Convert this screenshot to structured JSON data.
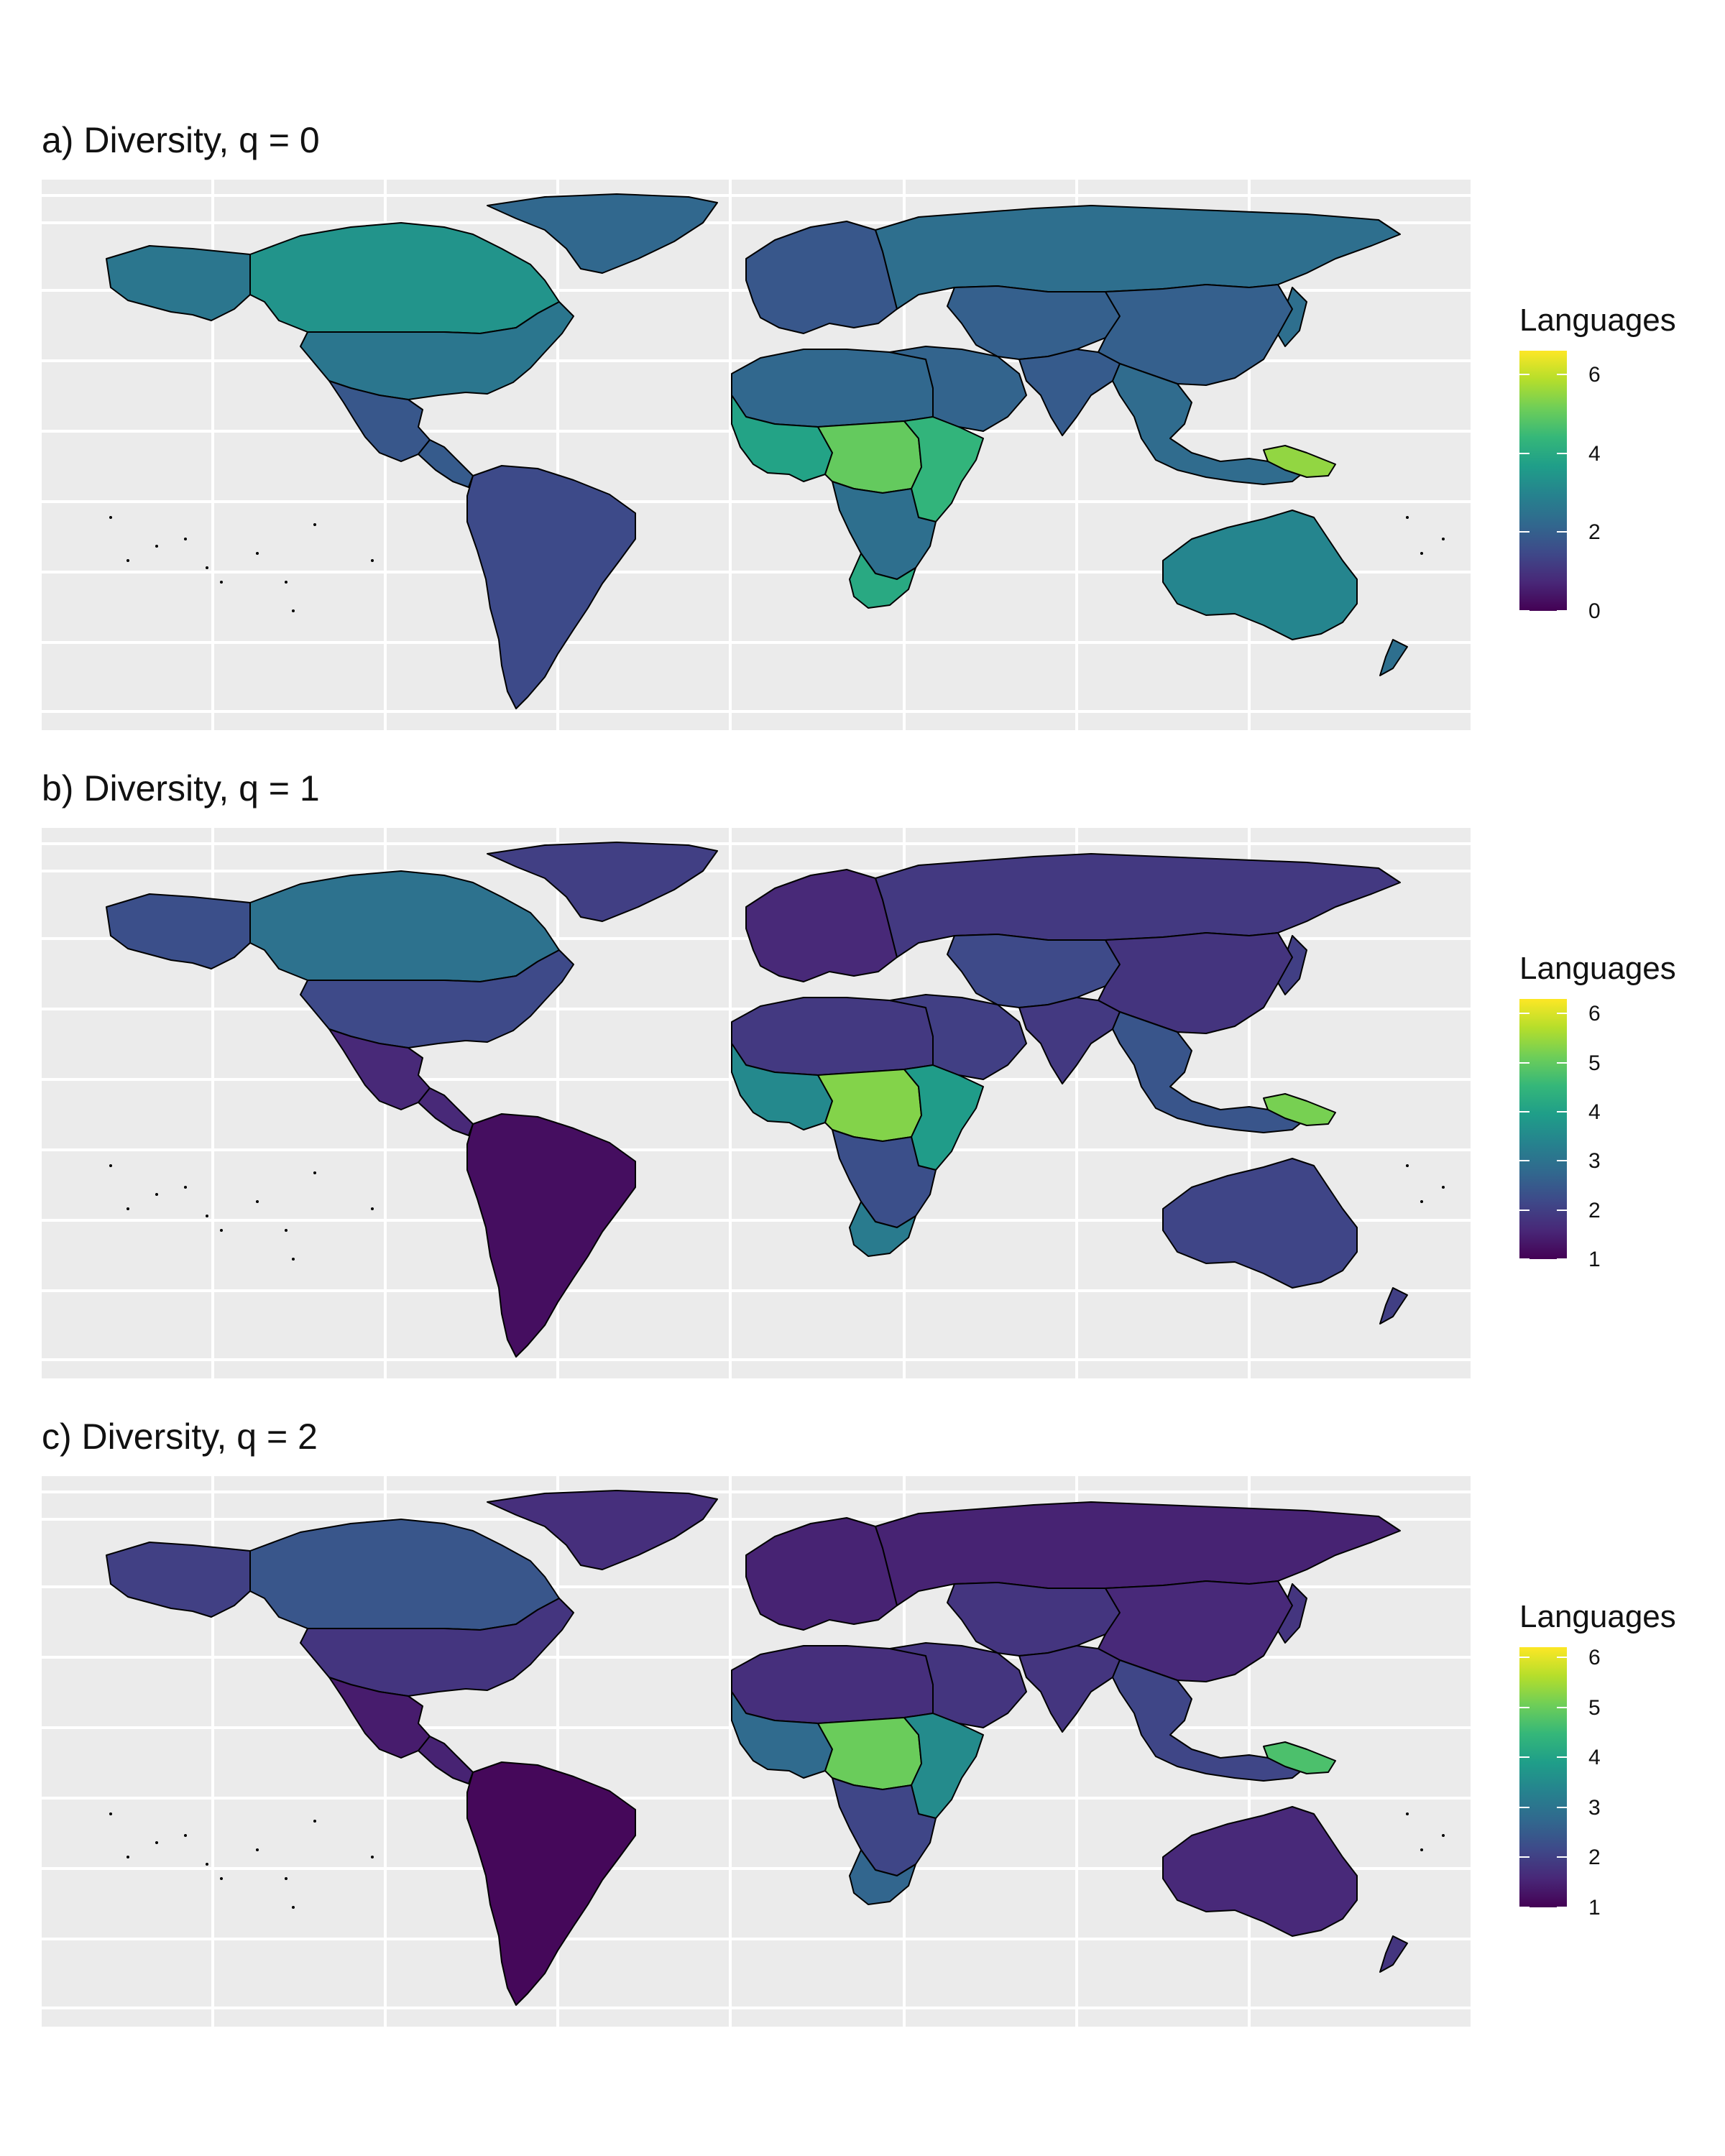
{
  "panels": [
    {
      "title": "a) Diversity, q = 0",
      "legend_title": "Languages",
      "scale": {
        "min": 0,
        "max": 6.6,
        "ticks": [
          "0",
          "2",
          "4",
          "6"
        ],
        "tick_values": [
          0,
          2,
          4,
          6
        ]
      },
      "regions": {
        "north_america": 3.4,
        "alaska": 2.6,
        "greenland": 2.2,
        "usa": 2.6,
        "mexico": 1.8,
        "central_america": 1.9,
        "south_america": 1.5,
        "europe": 1.8,
        "russia": 2.4,
        "north_africa": 2.2,
        "west_africa": 3.8,
        "central_africa": 5.0,
        "east_africa": 4.3,
        "southern_africa": 2.4,
        "south_africa": 4.0,
        "middle_east": 2.1,
        "central_asia": 2.0,
        "china": 2.0,
        "south_asia": 1.9,
        "southeast_asia": 2.3,
        "australia": 3.0,
        "papua_new_guinea": 5.5,
        "nz_japan": 2.4
      }
    },
    {
      "title": "b) Diversity, q = 1",
      "legend_title": "Languages",
      "scale": {
        "min": 1,
        "max": 6.3,
        "ticks": [
          "1",
          "2",
          "3",
          "4",
          "5",
          "6"
        ],
        "tick_values": [
          1,
          2,
          3,
          4,
          5,
          6
        ]
      },
      "regions": {
        "north_america": 3.0,
        "alaska": 2.3,
        "greenland": 2.0,
        "usa": 2.2,
        "mexico": 1.6,
        "central_america": 1.6,
        "south_america": 1.2,
        "europe": 1.6,
        "russia": 1.9,
        "north_africa": 1.9,
        "west_africa": 3.5,
        "central_africa": 5.3,
        "east_africa": 3.9,
        "southern_africa": 2.3,
        "south_africa": 3.2,
        "middle_east": 2.0,
        "central_asia": 2.2,
        "china": 1.8,
        "south_asia": 1.9,
        "southeast_asia": 2.4,
        "australia": 2.1,
        "papua_new_guinea": 5.2,
        "nz_japan": 2.0
      }
    },
    {
      "title": "c) Diversity, q = 2",
      "legend_title": "Languages",
      "scale": {
        "min": 1,
        "max": 6.2,
        "ticks": [
          "1",
          "2",
          "3",
          "4",
          "5",
          "6"
        ],
        "tick_values": [
          1,
          2,
          3,
          4,
          5,
          6
        ]
      },
      "regions": {
        "north_america": 2.4,
        "alaska": 2.0,
        "greenland": 1.7,
        "usa": 1.8,
        "mexico": 1.4,
        "central_america": 1.5,
        "south_america": 1.1,
        "europe": 1.5,
        "russia": 1.5,
        "north_africa": 1.7,
        "west_africa": 2.8,
        "central_africa": 5.0,
        "east_africa": 3.5,
        "southern_africa": 2.1,
        "south_africa": 2.7,
        "middle_east": 1.8,
        "central_asia": 1.8,
        "china": 1.6,
        "south_asia": 1.8,
        "southeast_asia": 2.1,
        "australia": 1.6,
        "papua_new_guinea": 4.7,
        "nz_japan": 1.8
      }
    }
  ],
  "colors": {
    "plot_background": "#ebebeb",
    "gridline": "#ffffff",
    "country_border": "#000000",
    "palette": "viridis",
    "viridis": [
      "#440154",
      "#482878",
      "#3e4989",
      "#31688e",
      "#26828e",
      "#1f9e89",
      "#35b779",
      "#6ece58",
      "#b5de2b",
      "#fde725"
    ]
  }
}
